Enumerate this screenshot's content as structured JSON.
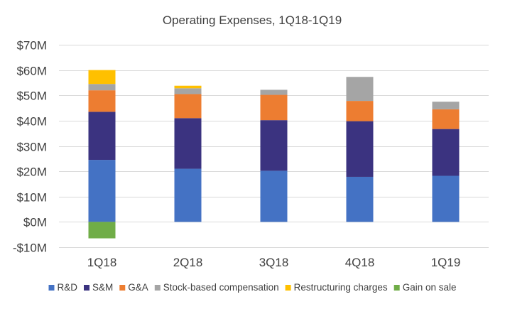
{
  "chart_data": {
    "type": "bar",
    "stacked": true,
    "title": "Operating Expenses, 1Q18-1Q19",
    "xlabel": "",
    "ylabel": "",
    "categories": [
      "1Q18",
      "2Q18",
      "3Q18",
      "4Q18",
      "1Q19"
    ],
    "ylim": [
      -10,
      70
    ],
    "yticks": [
      -10,
      0,
      10,
      20,
      30,
      40,
      50,
      60,
      70
    ],
    "ytick_labels": [
      "-$10M",
      "$0M",
      "$10M",
      "$20M",
      "$30M",
      "$40M",
      "$50M",
      "$60M",
      "$70M"
    ],
    "grid": true,
    "legend_position": "bottom",
    "series": [
      {
        "name": "R&D",
        "color": "#4472C4",
        "values": [
          24.5,
          21.0,
          20.2,
          17.8,
          18.2
        ]
      },
      {
        "name": "S&M",
        "color": "#3B3380",
        "values": [
          19.0,
          20.0,
          20.0,
          22.0,
          18.5
        ]
      },
      {
        "name": "G&A",
        "color": "#ED7D31",
        "values": [
          8.5,
          9.5,
          10.0,
          8.0,
          7.8
        ]
      },
      {
        "name": "Stock-based compensation",
        "color": "#A5A5A5",
        "values": [
          2.5,
          2.3,
          2.0,
          9.5,
          3.0
        ]
      },
      {
        "name": "Restructuring charges",
        "color": "#FFC000",
        "values": [
          5.5,
          1.0,
          0,
          0,
          0
        ]
      },
      {
        "name": "Gain on sale",
        "color": "#70AD47",
        "values": [
          -6.5,
          0,
          0,
          0,
          0
        ]
      }
    ]
  }
}
